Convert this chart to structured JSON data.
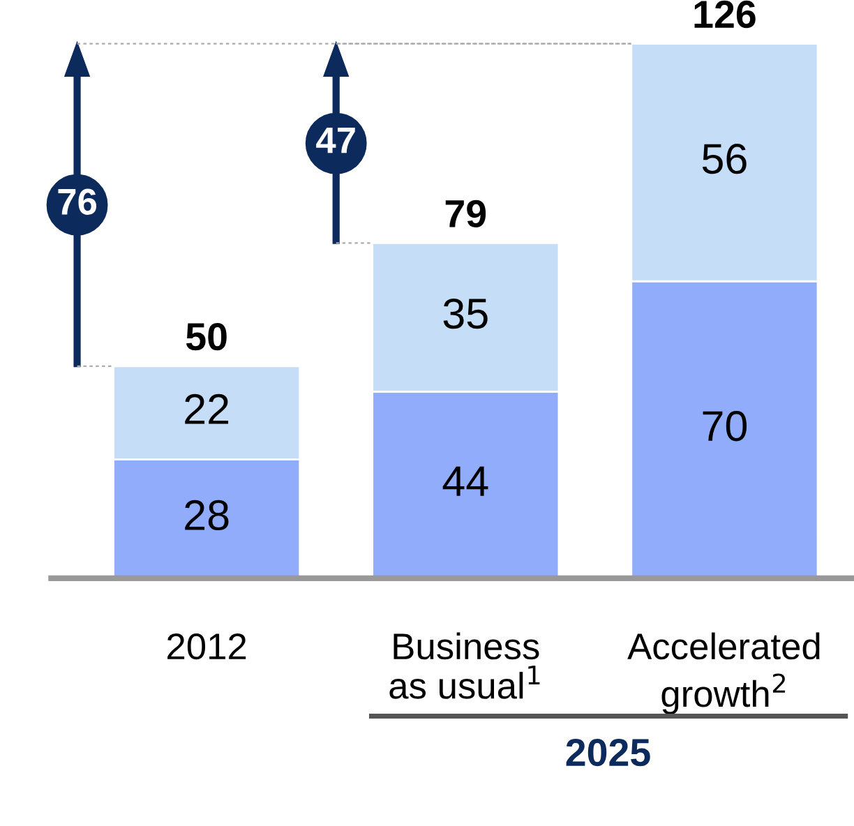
{
  "chart_data": {
    "type": "bar",
    "stacked": true,
    "categories": [
      "2012",
      "Business\nas usual$^{1}$",
      "Accelerated\ngrowth$^{2}$"
    ],
    "series": [
      {
        "color": "#91acfb",
        "values": [
          28,
          44,
          70
        ]
      },
      {
        "color": "#c6ddf8",
        "values": [
          22,
          35,
          56
        ]
      }
    ],
    "data_labels": true,
    "totals": [
      "50",
      "79",
      "126"
    ],
    "annotations": [
      "76",
      "47",
      "2025"
    ]
  }
}
